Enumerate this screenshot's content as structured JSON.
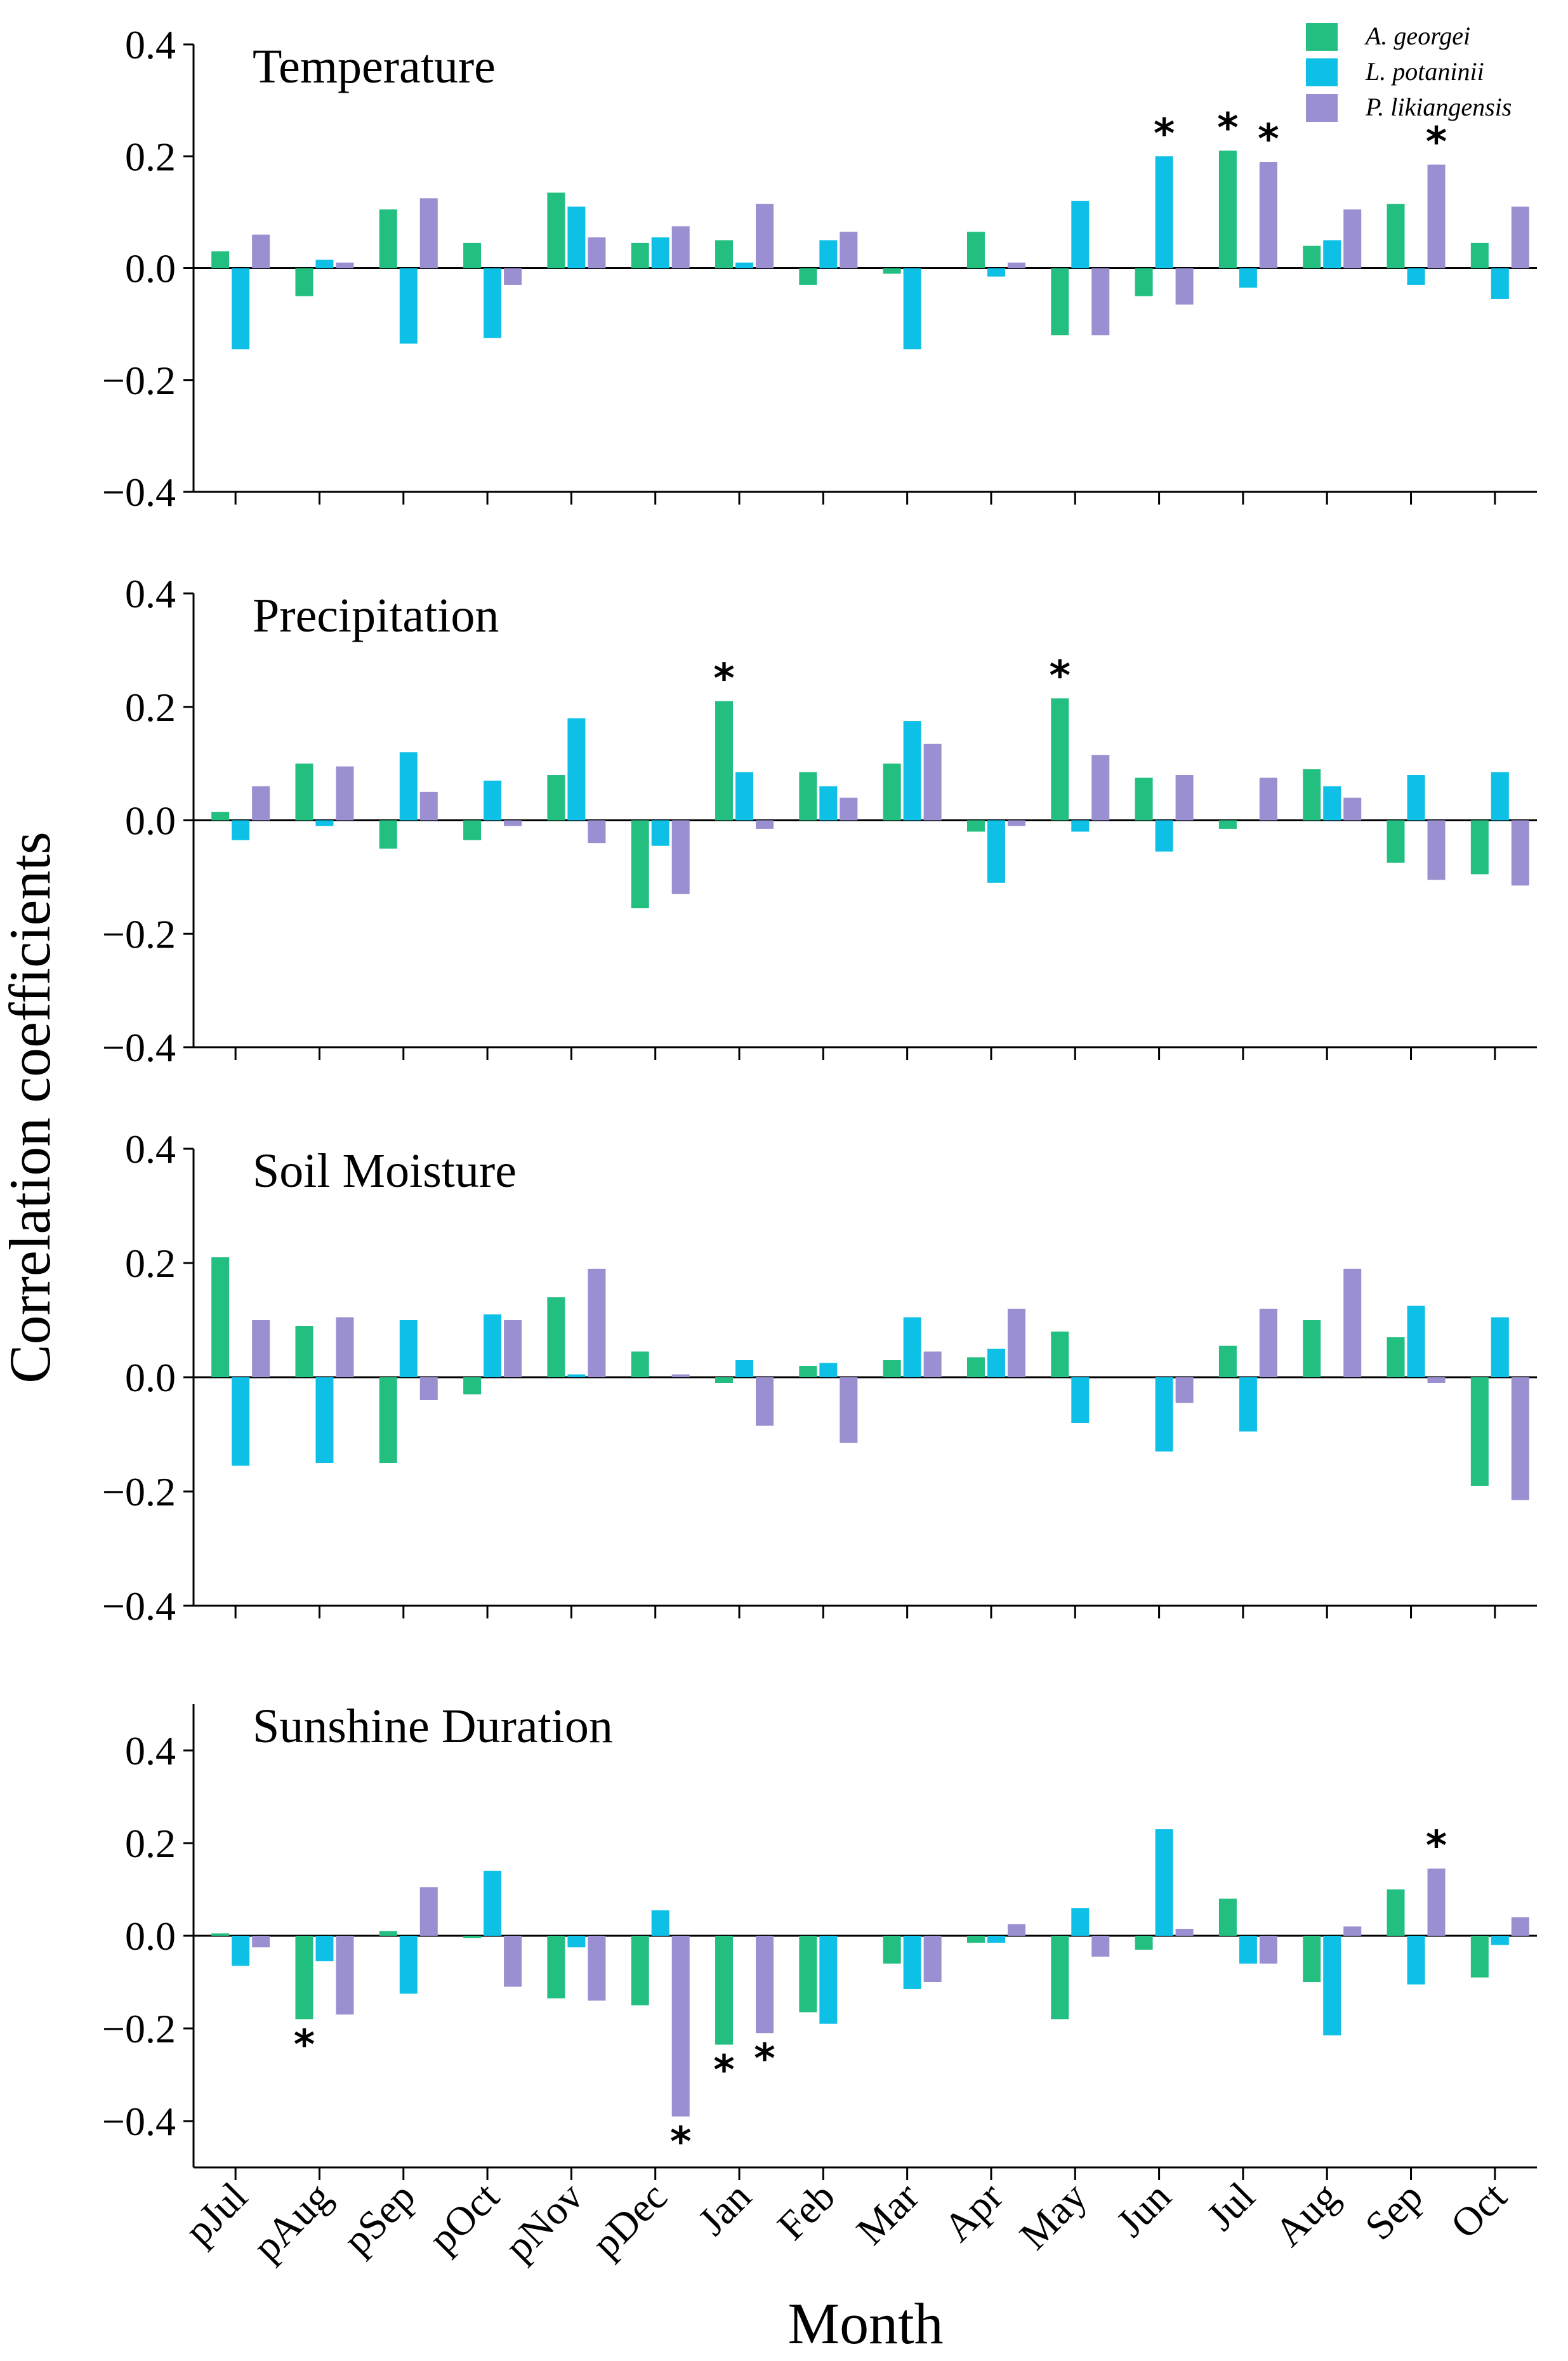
{
  "chart_data": {
    "type": "bar",
    "ylabel": "Correlation coefficients",
    "xlabel": "Month",
    "categories": [
      "pJul",
      "pAug",
      "pSep",
      "pOct",
      "pNov",
      "pDec",
      "Jan",
      "Feb",
      "Mar",
      "Apr",
      "May",
      "Jun",
      "Jul",
      "Aug",
      "Sep",
      "Oct"
    ],
    "series_names": [
      "A. georgei",
      "L. potaninii",
      "P. likiangensis"
    ],
    "colors": [
      "#23bf80",
      "#0ec0e6",
      "#9a8fd0"
    ],
    "panels": [
      {
        "title": "Temperature",
        "ylim": [
          -0.4,
          0.4
        ],
        "yticks": [
          "0.4",
          "0.2",
          "0.0",
          "−0.2",
          "−0.4"
        ],
        "ytick_values": [
          0.4,
          0.2,
          0.0,
          -0.2,
          -0.4
        ],
        "series": [
          {
            "name": "A. georgei",
            "values": [
              0.03,
              -0.05,
              0.105,
              0.045,
              0.135,
              0.045,
              0.05,
              -0.03,
              -0.01,
              0.065,
              -0.12,
              -0.05,
              0.21,
              0.04,
              0.115,
              0.045
            ]
          },
          {
            "name": "L. potaninii",
            "values": [
              -0.145,
              0.015,
              -0.135,
              -0.125,
              0.11,
              0.055,
              0.01,
              0.05,
              -0.145,
              -0.015,
              0.12,
              0.2,
              -0.035,
              0.05,
              -0.03,
              -0.055
            ]
          },
          {
            "name": "P. likiangensis",
            "values": [
              0.06,
              0.01,
              0.125,
              -0.03,
              0.055,
              0.075,
              0.115,
              0.065,
              0.0,
              0.01,
              -0.12,
              -0.065,
              0.19,
              0.105,
              0.185,
              0.11
            ]
          }
        ],
        "significant": [
          {
            "month": "Jun",
            "series": "L. potaninii"
          },
          {
            "month": "Jul",
            "series": "A. georgei"
          },
          {
            "month": "Jul",
            "series": "P. likiangensis"
          },
          {
            "month": "Sep",
            "series": "P. likiangensis"
          }
        ]
      },
      {
        "title": "Precipitation",
        "ylim": [
          -0.4,
          0.4
        ],
        "yticks": [
          "0.4",
          "0.2",
          "0.0",
          "−0.2",
          "−0.4"
        ],
        "ytick_values": [
          0.4,
          0.2,
          0.0,
          -0.2,
          -0.4
        ],
        "series": [
          {
            "name": "A. georgei",
            "values": [
              0.015,
              0.1,
              -0.05,
              -0.035,
              0.08,
              -0.155,
              0.21,
              0.085,
              0.1,
              -0.02,
              0.215,
              0.075,
              -0.015,
              0.09,
              -0.075,
              -0.095
            ]
          },
          {
            "name": "L. potaninii",
            "values": [
              -0.035,
              -0.01,
              0.12,
              0.07,
              0.18,
              -0.045,
              0.085,
              0.06,
              0.175,
              -0.11,
              -0.02,
              -0.055,
              0.0,
              0.06,
              0.08,
              0.085
            ]
          },
          {
            "name": "P. likiangensis",
            "values": [
              0.06,
              0.095,
              0.05,
              -0.01,
              -0.04,
              -0.13,
              -0.015,
              0.04,
              0.135,
              -0.01,
              0.115,
              0.08,
              0.075,
              0.04,
              -0.105,
              -0.115
            ]
          }
        ],
        "significant": [
          {
            "month": "Jan",
            "series": "A. georgei"
          },
          {
            "month": "May",
            "series": "A. georgei"
          }
        ]
      },
      {
        "title": "Soil Moisture",
        "ylim": [
          -0.4,
          0.4
        ],
        "yticks": [
          "0.4",
          "0.2",
          "0.0",
          "−0.2",
          "−0.4"
        ],
        "ytick_values": [
          0.4,
          0.2,
          0.0,
          -0.2,
          -0.4
        ],
        "series": [
          {
            "name": "A. georgei",
            "values": [
              0.21,
              0.09,
              -0.15,
              -0.03,
              0.14,
              0.045,
              -0.01,
              0.02,
              0.03,
              0.035,
              0.08,
              0.0,
              0.055,
              0.1,
              0.07,
              -0.19
            ]
          },
          {
            "name": "L. potaninii",
            "values": [
              -0.155,
              -0.15,
              0.1,
              0.11,
              0.005,
              0.0,
              0.03,
              0.025,
              0.105,
              0.05,
              -0.08,
              -0.13,
              -0.095,
              0.0,
              0.125,
              0.105
            ]
          },
          {
            "name": "P. likiangensis",
            "values": [
              0.1,
              0.105,
              -0.04,
              0.1,
              0.19,
              0.005,
              -0.085,
              -0.115,
              0.045,
              0.12,
              0.0,
              -0.045,
              0.12,
              0.19,
              -0.01,
              -0.215
            ]
          }
        ],
        "significant": []
      },
      {
        "title": "Sunshine Duration",
        "ylim": [
          -0.5,
          0.5
        ],
        "yticks": [
          "0.4",
          "0.2",
          "0.0",
          "−0.2",
          "−0.4"
        ],
        "ytick_values": [
          0.4,
          0.2,
          0.0,
          -0.2,
          -0.4
        ],
        "series": [
          {
            "name": "A. georgei",
            "values": [
              0.005,
              -0.18,
              0.01,
              -0.005,
              -0.135,
              -0.15,
              -0.235,
              -0.165,
              -0.06,
              -0.015,
              -0.18,
              -0.03,
              0.08,
              -0.1,
              0.1,
              -0.09
            ]
          },
          {
            "name": "L. potaninii",
            "values": [
              -0.065,
              -0.055,
              -0.125,
              0.14,
              -0.025,
              0.055,
              0.0,
              -0.19,
              -0.115,
              -0.015,
              0.06,
              0.23,
              -0.06,
              -0.215,
              -0.105,
              -0.02
            ]
          },
          {
            "name": "P. likiangensis",
            "values": [
              -0.025,
              -0.17,
              0.105,
              -0.11,
              -0.14,
              -0.39,
              -0.21,
              0.0,
              -0.1,
              0.025,
              -0.045,
              0.015,
              -0.06,
              0.02,
              0.145,
              0.04
            ]
          }
        ],
        "significant": [
          {
            "month": "pAug",
            "series": "A. georgei"
          },
          {
            "month": "pDec",
            "series": "P. likiangensis"
          },
          {
            "month": "Jan",
            "series": "A. georgei"
          },
          {
            "month": "Jan",
            "series": "P. likiangensis"
          },
          {
            "month": "Sep",
            "series": "P. likiangensis"
          }
        ]
      }
    ]
  },
  "significance_marker": "*"
}
